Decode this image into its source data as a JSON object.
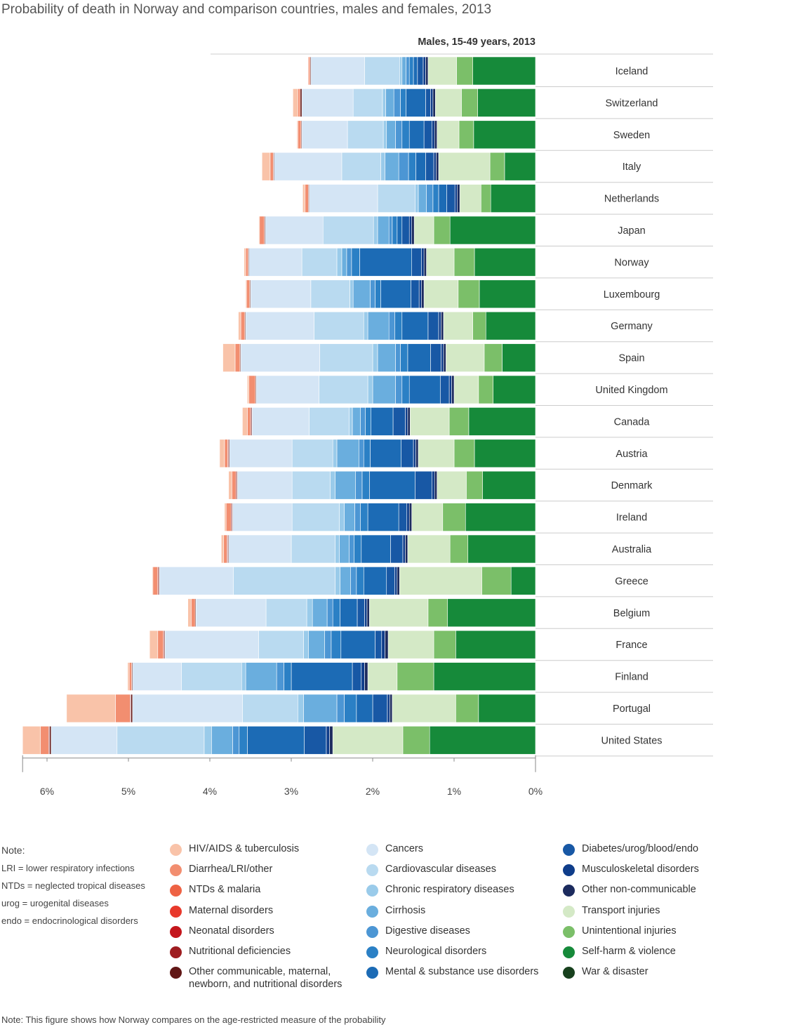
{
  "title": "Probability of death in Norway and comparison countries, males and females, 2013",
  "bottom_note": "Note: This figure shows how Norway compares on the age-restricted measure of the probability",
  "notes": {
    "title": "Note:",
    "lines": [
      "LRI = lower respiratory infections",
      "NTDs = neglected tropical diseases",
      "urog = urogenital diseases",
      "endo = endocrinological disorders"
    ]
  },
  "chart_data": {
    "type": "bar",
    "orientation": "horizontal-stacked",
    "subtitle": "Males, 15-49 years, 2013",
    "xlim": [
      6.3,
      0
    ],
    "x_ticks": [
      "6%",
      "5%",
      "4%",
      "3%",
      "2%",
      "1%",
      "0%"
    ],
    "x_tick_values": [
      6,
      5,
      4,
      3,
      2,
      1,
      0
    ],
    "categories": [
      "Iceland",
      "Switzerland",
      "Sweden",
      "Italy",
      "Netherlands",
      "Japan",
      "Norway",
      "Luxembourg",
      "Germany",
      "Spain",
      "United Kingdom",
      "Canada",
      "Austria",
      "Denmark",
      "Ireland",
      "Australia",
      "Greece",
      "Belgium",
      "France",
      "Finland",
      "Portugal",
      "United States"
    ],
    "series": [
      {
        "name": "Self-harm & violence",
        "color": "#168a3a",
        "values": [
          0.77,
          0.71,
          0.76,
          0.38,
          0.55,
          1.05,
          0.75,
          0.69,
          0.61,
          0.41,
          0.52,
          0.82,
          0.75,
          0.65,
          0.86,
          0.83,
          0.3,
          1.08,
          0.98,
          1.25,
          0.7,
          1.3
        ]
      },
      {
        "name": "Unintentional injuries",
        "color": "#7bbf69",
        "values": [
          0.2,
          0.2,
          0.18,
          0.18,
          0.12,
          0.2,
          0.25,
          0.26,
          0.16,
          0.22,
          0.18,
          0.24,
          0.25,
          0.2,
          0.28,
          0.22,
          0.36,
          0.24,
          0.27,
          0.45,
          0.28,
          0.33
        ]
      },
      {
        "name": "Transport injuries",
        "color": "#d4e9c6",
        "values": [
          0.35,
          0.32,
          0.27,
          0.63,
          0.26,
          0.24,
          0.34,
          0.42,
          0.36,
          0.47,
          0.3,
          0.48,
          0.44,
          0.36,
          0.38,
          0.52,
          1.01,
          0.72,
          0.56,
          0.36,
          0.78,
          0.86
        ]
      },
      {
        "name": "War & disaster",
        "color": "#17401d",
        "values": [
          0,
          0,
          0,
          0,
          0,
          0,
          0,
          0,
          0,
          0,
          0,
          0,
          0,
          0,
          0,
          0,
          0,
          0,
          0,
          0,
          0,
          0
        ]
      },
      {
        "name": "Other non-communicable",
        "color": "#1c2b5e",
        "values": [
          0.03,
          0.03,
          0.03,
          0.03,
          0.03,
          0.03,
          0.03,
          0.03,
          0.03,
          0.03,
          0.03,
          0.03,
          0.03,
          0.03,
          0.03,
          0.03,
          0.03,
          0.03,
          0.04,
          0.04,
          0.03,
          0.04
        ]
      },
      {
        "name": "Musculoskeletal disorders",
        "color": "#0f3d8a",
        "values": [
          0.03,
          0.03,
          0.03,
          0.03,
          0.03,
          0.03,
          0.03,
          0.03,
          0.03,
          0.03,
          0.03,
          0.03,
          0.03,
          0.03,
          0.03,
          0.03,
          0.03,
          0.03,
          0.04,
          0.04,
          0.03,
          0.04
        ]
      },
      {
        "name": "Diabetes/urog/blood/endo",
        "color": "#1858a5",
        "values": [
          0.07,
          0.06,
          0.1,
          0.1,
          0.1,
          0.09,
          0.12,
          0.1,
          0.13,
          0.13,
          0.11,
          0.15,
          0.15,
          0.21,
          0.1,
          0.15,
          0.1,
          0.09,
          0.08,
          0.11,
          0.18,
          0.27
        ]
      },
      {
        "name": "Mental & substance use disorders",
        "color": "#1c6bb5",
        "values": [
          0.05,
          0.24,
          0.18,
          0.12,
          0.1,
          0.06,
          0.64,
          0.37,
          0.32,
          0.28,
          0.38,
          0.27,
          0.38,
          0.56,
          0.38,
          0.36,
          0.28,
          0.21,
          0.42,
          0.75,
          0.2,
          0.7
        ]
      },
      {
        "name": "Neurological disorders",
        "color": "#2b80c5",
        "values": [
          0.05,
          0.07,
          0.09,
          0.09,
          0.07,
          0.06,
          0.1,
          0.07,
          0.09,
          0.09,
          0.09,
          0.07,
          0.08,
          0.09,
          0.09,
          0.09,
          0.09,
          0.09,
          0.12,
          0.09,
          0.15,
          0.1
        ]
      },
      {
        "name": "Digestive diseases",
        "color": "#4c96d4",
        "values": [
          0.04,
          0.08,
          0.08,
          0.12,
          0.08,
          0.04,
          0.06,
          0.06,
          0.07,
          0.06,
          0.08,
          0.06,
          0.06,
          0.08,
          0.07,
          0.06,
          0.07,
          0.07,
          0.08,
          0.09,
          0.09,
          0.08
        ]
      },
      {
        "name": "Cirrhosis",
        "color": "#6aaede",
        "values": [
          0.05,
          0.1,
          0.11,
          0.17,
          0.1,
          0.14,
          0.06,
          0.21,
          0.26,
          0.22,
          0.28,
          0.1,
          0.27,
          0.25,
          0.13,
          0.12,
          0.13,
          0.18,
          0.2,
          0.38,
          0.41,
          0.26
        ]
      },
      {
        "name": "Chronic respiratory diseases",
        "color": "#9acbea",
        "values": [
          0.03,
          0.04,
          0.04,
          0.05,
          0.04,
          0.05,
          0.06,
          0.04,
          0.05,
          0.06,
          0.06,
          0.04,
          0.05,
          0.06,
          0.06,
          0.05,
          0.06,
          0.07,
          0.06,
          0.05,
          0.07,
          0.09
        ]
      },
      {
        "name": "Cardiovascular diseases",
        "color": "#b9daf0",
        "values": [
          0.43,
          0.36,
          0.44,
          0.48,
          0.46,
          0.62,
          0.43,
          0.48,
          0.61,
          0.65,
          0.6,
          0.49,
          0.5,
          0.47,
          0.58,
          0.54,
          1.25,
          0.5,
          0.55,
          0.74,
          0.68,
          1.07
        ]
      },
      {
        "name": "Cancers",
        "color": "#d4e5f5",
        "values": [
          0.66,
          0.63,
          0.56,
          0.83,
          0.84,
          0.71,
          0.65,
          0.74,
          0.84,
          0.97,
          0.77,
          0.7,
          0.77,
          0.67,
          0.73,
          0.77,
          0.91,
          0.86,
          1.15,
          0.6,
          1.35,
          0.81
        ]
      },
      {
        "name": "Other communicable, maternal, newborn, and nutritional disorders",
        "color": "#611716",
        "values": [
          0.01,
          0.02,
          0.01,
          0.01,
          0.01,
          0.01,
          0.01,
          0.01,
          0.01,
          0.01,
          0.01,
          0.01,
          0.01,
          0.01,
          0.01,
          0.01,
          0.01,
          0.01,
          0.01,
          0.01,
          0.02,
          0.02
        ]
      },
      {
        "name": "Nutritional deficiencies",
        "color": "#9e1d20",
        "values": [
          0,
          0,
          0,
          0,
          0,
          0,
          0,
          0,
          0,
          0,
          0,
          0.01,
          0.01,
          0.01,
          0.01,
          0.01,
          0.01,
          0,
          0.01,
          0,
          0.01,
          0.01
        ]
      },
      {
        "name": "Neonatal disorders",
        "color": "#c4161c",
        "values": [
          0,
          0,
          0,
          0,
          0,
          0,
          0,
          0,
          0,
          0,
          0,
          0,
          0,
          0,
          0,
          0,
          0,
          0,
          0,
          0,
          0,
          0
        ]
      },
      {
        "name": "Maternal disorders",
        "color": "#e8392c",
        "values": [
          0,
          0,
          0,
          0,
          0,
          0,
          0,
          0,
          0,
          0,
          0,
          0,
          0,
          0,
          0,
          0,
          0,
          0,
          0,
          0,
          0,
          0
        ]
      },
      {
        "name": "NTDs & malaria",
        "color": "#ee6244",
        "values": [
          0,
          0,
          0,
          0,
          0,
          0,
          0,
          0,
          0,
          0,
          0,
          0,
          0,
          0,
          0,
          0,
          0,
          0,
          0,
          0,
          0,
          0
        ]
      },
      {
        "name": "Diarrhea/LRI/other",
        "color": "#f28e70",
        "values": [
          0.02,
          0.03,
          0.04,
          0.04,
          0.04,
          0.06,
          0.03,
          0.04,
          0.05,
          0.06,
          0.08,
          0.04,
          0.04,
          0.05,
          0.06,
          0.04,
          0.06,
          0.05,
          0.07,
          0.03,
          0.18,
          0.1
        ]
      },
      {
        "name": "HIV/AIDS & tuberculosis",
        "color": "#f9c3a9",
        "values": [
          0,
          0.06,
          0.01,
          0.1,
          0.03,
          0.01,
          0.02,
          0.01,
          0.03,
          0.15,
          0.02,
          0.06,
          0.06,
          0.04,
          0.02,
          0.03,
          0.01,
          0.04,
          0.1,
          0.02,
          0.6,
          0.22
        ]
      }
    ]
  },
  "legend": {
    "columns": [
      [
        {
          "label": "HIV/AIDS & tuberculosis",
          "color": "#f9c3a9"
        },
        {
          "label": "Diarrhea/LRI/other",
          "color": "#f28e70"
        },
        {
          "label": "NTDs & malaria",
          "color": "#ee6244"
        },
        {
          "label": "Maternal disorders",
          "color": "#e8392c"
        },
        {
          "label": "Neonatal disorders",
          "color": "#c4161c"
        },
        {
          "label": "Nutritional deficiencies",
          "color": "#9e1d20"
        },
        {
          "label": "Other communicable, maternal,",
          "label2": "newborn, and nutritional disorders",
          "color": "#611716"
        }
      ],
      [
        {
          "label": "Cancers",
          "color": "#d4e5f5"
        },
        {
          "label": "Cardiovascular diseases",
          "color": "#b9daf0"
        },
        {
          "label": "Chronic respiratory diseases",
          "color": "#9acbea"
        },
        {
          "label": "Cirrhosis",
          "color": "#6aaede"
        },
        {
          "label": "Digestive diseases",
          "color": "#4c96d4"
        },
        {
          "label": "Neurological disorders",
          "color": "#2b80c5"
        },
        {
          "label": "Mental & substance use disorders",
          "color": "#1c6bb5"
        }
      ],
      [
        {
          "label": "Diabetes/urog/blood/endo",
          "color": "#1858a5"
        },
        {
          "label": "Musculoskeletal disorders",
          "color": "#0f3d8a"
        },
        {
          "label": "Other non-communicable",
          "color": "#1c2b5e"
        },
        {
          "label": "Transport injuries",
          "color": "#d4e9c6"
        },
        {
          "label": "Unintentional injuries",
          "color": "#7bbf69"
        },
        {
          "label": "Self-harm & violence",
          "color": "#168a3a"
        },
        {
          "label": "War & disaster",
          "color": "#17401d"
        }
      ]
    ]
  }
}
